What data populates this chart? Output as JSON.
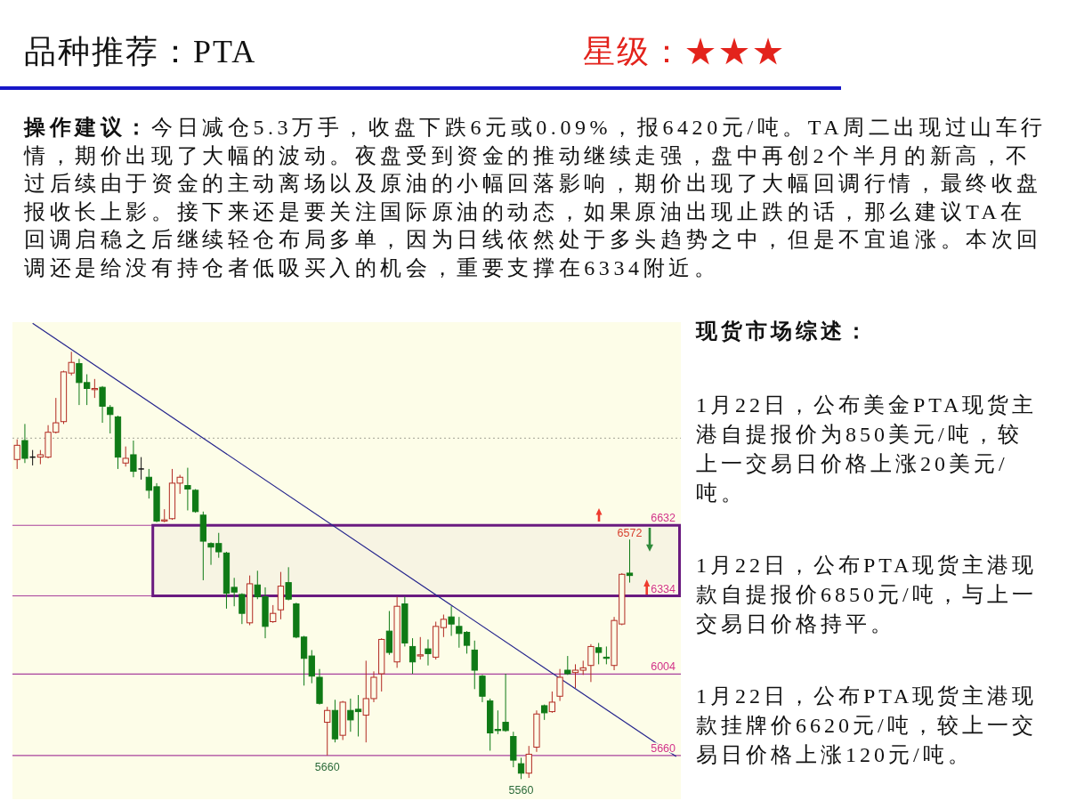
{
  "chart_data": {
    "type": "candlestick",
    "title": "品种推荐：PTA",
    "subtitle": "星级：★★★",
    "annotations": [
      "操作建议：",
      "今日减仓5.3万手，收盘下跌6元或0.09%，报6420元/吨。TA周二出现过山车行情，期价出现了大幅的波动。夜盘受到资金的推动继续走强，盘中再创2个半月的新高，不过后续由于资金的主动离场以及原油的小幅回落影响，期价出现了大幅回调行情，最终收盘报收长上影。接下来还是要关注国际原油的动态，如果原油出现止跌的话，那么建议TA在回调启稳之后继续轻仓布局多单，因为日线依然处于多头趋势之中，但是不宜追涨。本次回调还是给没有持仓者低吸买入的机会，重要支撑在6334附近。",
      "现货市场综述：",
      "1月22日，公布美金PTA现货主港自提报价为850美元/吨，较上一交易日价格上涨20美元/吨。",
      "1月22日，公布PTA现货主港现款自提报价6850元/吨，与上一交易日价格持平。",
      "1月22日，公布PTA现货主港现款挂牌价6620元/吨，较上一交易日价格上涨120元/吨。",
      {
        "text": "5660",
        "y": 5660
      },
      {
        "text": "5560",
        "y": 5560
      },
      {
        "text": "6572",
        "y": 6572
      }
    ],
    "categories": [
      null,
      null,
      null,
      null,
      null,
      null,
      null,
      null,
      null,
      null,
      null,
      null,
      null,
      null,
      null,
      null,
      null,
      null,
      null,
      null,
      null,
      null,
      null,
      null,
      null,
      null,
      null,
      null,
      null,
      null,
      null,
      null,
      null,
      null,
      null,
      null,
      null,
      null,
      null,
      null,
      null,
      null,
      null,
      null,
      null,
      null,
      null,
      null,
      null,
      null,
      null,
      null,
      null,
      null,
      null,
      null,
      null,
      null,
      null,
      null,
      null,
      null,
      null,
      null,
      null,
      null,
      null,
      null,
      null,
      null,
      null,
      null,
      null,
      null,
      null,
      null,
      null,
      null,
      null,
      null,
      null,
      null,
      null,
      null,
      null,
      null
    ],
    "ohlc": [
      [
        6910,
        6995,
        6870,
        6970
      ],
      [
        6990,
        7060,
        6895,
        6915
      ],
      [
        6920,
        6950,
        6885,
        6920
      ],
      [
        6920,
        6950,
        6890,
        6930
      ],
      [
        6920,
        7055,
        6915,
        7025
      ],
      [
        7025,
        7170,
        7020,
        7065
      ],
      [
        7070,
        7285,
        7060,
        7280
      ],
      [
        7275,
        7365,
        7265,
        7320
      ],
      [
        7315,
        7335,
        7140,
        7235
      ],
      [
        7235,
        7270,
        7140,
        7210
      ],
      [
        7205,
        7250,
        7170,
        7210
      ],
      [
        7215,
        7220,
        7065,
        7135
      ],
      [
        7130,
        7140,
        7020,
        7100
      ],
      [
        7090,
        7095,
        6870,
        6920
      ],
      [
        6895,
        6965,
        6880,
        6915
      ],
      [
        6930,
        6990,
        6835,
        6860
      ],
      [
        6870,
        6920,
        6825,
        6870
      ],
      [
        6835,
        6870,
        6745,
        6780
      ],
      [
        6795,
        6810,
        6645,
        6650
      ],
      [
        6650,
        6700,
        6645,
        6655
      ],
      [
        6660,
        6870,
        6655,
        6810
      ],
      [
        6810,
        6845,
        6765,
        6835
      ],
      [
        6800,
        6875,
        6695,
        6785
      ],
      [
        6780,
        6785,
        6685,
        6690
      ],
      [
        6675,
        6690,
        6400,
        6565
      ],
      [
        6555,
        6560,
        6465,
        6540
      ],
      [
        6555,
        6600,
        6495,
        6520
      ],
      [
        6515,
        6520,
        6280,
        6345
      ],
      [
        6370,
        6410,
        6290,
        6350
      ],
      [
        6340,
        6345,
        6215,
        6260
      ],
      [
        6220,
        6420,
        6210,
        6385
      ],
      [
        6380,
        6440,
        6320,
        6330
      ],
      [
        6330,
        6370,
        6155,
        6205
      ],
      [
        6225,
        6295,
        6220,
        6260
      ],
      [
        6275,
        6435,
        6235,
        6375
      ],
      [
        6390,
        6455,
        6315,
        6320
      ],
      [
        6300,
        6305,
        6155,
        6160
      ],
      [
        6160,
        6165,
        5955,
        6070
      ],
      [
        6080,
        6105,
        5965,
        5995
      ],
      [
        5990,
        6025,
        5875,
        5880
      ],
      [
        5800,
        5865,
        5660,
        5850
      ],
      [
        5850,
        5895,
        5715,
        5730
      ],
      [
        5745,
        5890,
        5725,
        5885
      ],
      [
        5850,
        5900,
        5760,
        5810
      ],
      [
        5855,
        5915,
        5740,
        5845
      ],
      [
        5830,
        6060,
        5715,
        5900
      ],
      [
        5900,
        6015,
        5885,
        5990
      ],
      [
        6005,
        6155,
        5930,
        6150
      ],
      [
        6185,
        6270,
        6085,
        6095
      ],
      [
        6055,
        6330,
        6030,
        6290
      ],
      [
        6300,
        6330,
        6120,
        6135
      ],
      [
        6120,
        6155,
        6005,
        6055
      ],
      [
        6080,
        6160,
        6065,
        6085
      ],
      [
        6110,
        6150,
        6040,
        6090
      ],
      [
        6075,
        6225,
        6065,
        6205
      ],
      [
        6200,
        6255,
        6160,
        6235
      ],
      [
        6245,
        6290,
        6165,
        6215
      ],
      [
        6205,
        6245,
        6115,
        6175
      ],
      [
        6180,
        6185,
        6090,
        6125
      ],
      [
        6105,
        6145,
        5940,
        6020
      ],
      [
        5995,
        6000,
        5885,
        5910
      ],
      [
        5890,
        5900,
        5680,
        5755
      ],
      [
        5770,
        5850,
        5750,
        5765
      ],
      [
        5800,
        6005,
        5760,
        5765
      ],
      [
        5740,
        5760,
        5610,
        5640
      ],
      [
        5625,
        5650,
        5560,
        5585
      ],
      [
        5585,
        5700,
        5565,
        5665
      ],
      [
        5695,
        5850,
        5675,
        5835
      ],
      [
        5870,
        5875,
        5810,
        5840
      ],
      [
        5845,
        5930,
        5840,
        5885
      ],
      [
        5910,
        6025,
        5890,
        5990
      ],
      [
        6020,
        6080,
        6000,
        6005
      ],
      [
        6010,
        6045,
        5945,
        6020
      ],
      [
        6020,
        6060,
        6000,
        6030
      ],
      [
        6040,
        6130,
        5970,
        6120
      ],
      [
        6115,
        6135,
        6045,
        6095
      ],
      [
        6075,
        6120,
        6045,
        6070
      ],
      [
        6040,
        6245,
        6020,
        6230
      ],
      [
        6215,
        6430,
        6210,
        6425
      ],
      [
        6430,
        6572,
        6390,
        6420
      ],
      null,
      null,
      null,
      null,
      null,
      null
    ],
    "colors": [
      "#b22a22",
      "#0f7a16",
      "#111111",
      "#b22a22",
      "#b22a22",
      "#b22a22",
      "#b22a22",
      "#b22a22",
      "#0f7a16",
      "#0f7a16",
      "#b22a22",
      "#0f7a16",
      "#0f7a16",
      "#0f7a16",
      "#b22a22",
      "#0f7a16",
      "#111111",
      "#0f7a16",
      "#0f7a16",
      "#b22a22",
      "#b22a22",
      "#b22a22",
      "#0f7a16",
      "#0f7a16",
      "#0f7a16",
      "#0f7a16",
      "#0f7a16",
      "#0f7a16",
      "#0f7a16",
      "#0f7a16",
      "#b22a22",
      "#0f7a16",
      "#0f7a16",
      "#b22a22",
      "#b22a22",
      "#0f7a16",
      "#0f7a16",
      "#0f7a16",
      "#0f7a16",
      "#0f7a16",
      "#b22a22",
      "#0f7a16",
      "#b22a22",
      "#0f7a16",
      "#0f7a16",
      "#b22a22",
      "#b22a22",
      "#b22a22",
      "#0f7a16",
      "#b22a22",
      "#0f7a16",
      "#0f7a16",
      "#b22a22",
      "#0f7a16",
      "#b22a22",
      "#b22a22",
      "#0f7a16",
      "#0f7a16",
      "#0f7a16",
      "#0f7a16",
      "#0f7a16",
      "#0f7a16",
      "#0f7a16",
      "#0f7a16",
      "#0f7a16",
      "#0f7a16",
      "#b22a22",
      "#b22a22",
      "#0f7a16",
      "#b22a22",
      "#b22a22",
      "#0f7a16",
      "#b22a22",
      "#b22a22",
      "#b22a22",
      "#0f7a16",
      "#0f7a16",
      "#b22a22",
      "#b22a22",
      "#0f7a16",
      null,
      null,
      null,
      null,
      null,
      null
    ],
    "series": [
      {
        "type": "line",
        "values": [
          null,
          null,
          7485,
          null,
          null,
          null,
          null,
          null,
          null,
          null,
          null,
          null,
          null,
          null,
          null,
          null,
          null,
          null,
          null,
          null,
          null,
          null,
          null,
          null,
          null,
          null,
          null,
          null,
          null,
          null,
          null,
          null,
          null,
          null,
          null,
          null,
          null,
          null,
          null,
          null,
          null,
          null,
          null,
          null,
          null,
          null,
          null,
          null,
          null,
          null,
          null,
          null,
          null,
          null,
          null,
          null,
          null,
          null,
          null,
          null,
          null,
          null,
          null,
          null,
          null,
          null,
          null,
          null,
          null,
          null,
          null,
          null,
          null,
          null,
          null,
          null,
          null,
          null,
          null,
          null,
          null,
          null,
          null,
          null,
          null,
          5655
        ],
        "color": "#23238c"
      }
    ],
    "ylim": [
      5475,
      7490
    ],
    "tick_labels": false,
    "ref_lines": [
      {
        "axis": "y",
        "value": 7000,
        "color": "#b5b5a5",
        "line_style": "dotted"
      },
      {
        "axis": "y",
        "value": 6632,
        "label": "6632",
        "color": "#a8409c"
      },
      {
        "axis": "y",
        "value": 6334,
        "label": "6334",
        "color": "#a8409c"
      },
      {
        "axis": "y",
        "value": 6004,
        "label": "6004",
        "color": "#a8409c"
      },
      {
        "axis": "y",
        "value": 5660,
        "label": "5660",
        "color": "#a8409c"
      }
    ],
    "bands": [
      {
        "axis": "y",
        "from": 6334,
        "to": 6632,
        "color": "#6a1a80"
      }
    ]
  }
}
